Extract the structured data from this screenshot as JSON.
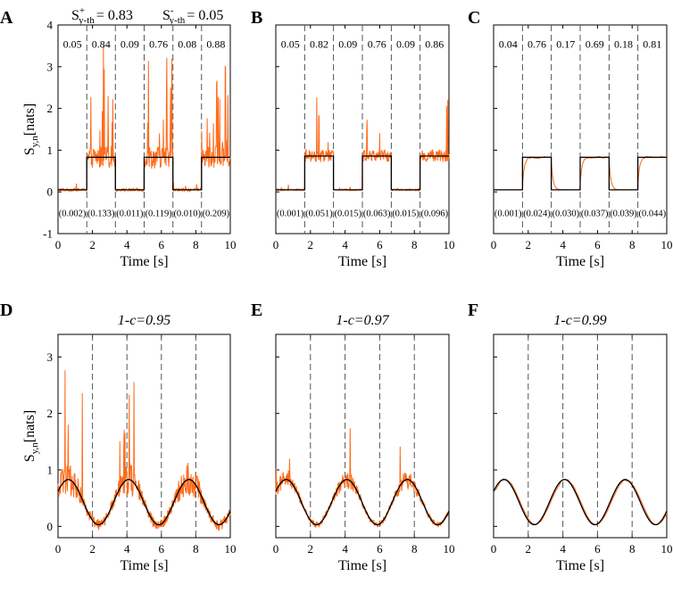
{
  "chart_data": [
    {
      "panel": "A",
      "type": "line",
      "xlabel": "Time [s]",
      "ylabel_main": "S",
      "ylabel_sub": "y,n",
      "ylabel_unit": "[nats]",
      "xlim": [
        0,
        10
      ],
      "ylim": [
        -1,
        4
      ],
      "xticks": [
        "0",
        "2",
        "4",
        "6",
        "8",
        "10"
      ],
      "yticks": [
        "-1",
        "0",
        "1",
        "2",
        "3",
        "4"
      ],
      "dashed_x": [
        1.67,
        3.33,
        5.0,
        6.67,
        8.33
      ],
      "segment_means": [
        "0.05",
        "0.84",
        "0.09",
        "0.76",
        "0.08",
        "0.88"
      ],
      "segment_sd": [
        "(0.002)",
        "(0.133)",
        "(0.011)",
        "(0.119)",
        "(0.010)",
        "(0.209)"
      ],
      "threshold_plus_label": "S",
      "threshold_plus_sup": "+",
      "threshold_plus_sub": "y-th",
      "threshold_plus_value": "= 0.83",
      "threshold_minus_label": "S",
      "threshold_minus_sup": "-",
      "threshold_minus_sub": "y-th",
      "threshold_minus_value": "= 0.05",
      "series": [
        {
          "name": "reference",
          "color": "#000000",
          "step_levels": [
            0.05,
            0.83,
            0.05,
            0.83,
            0.05,
            0.83
          ]
        },
        {
          "name": "estimate",
          "color": "#ff6a1a",
          "mode": "square",
          "noise": 0.55,
          "spikes": 1.0,
          "smooth": 0
        }
      ]
    },
    {
      "panel": "B",
      "type": "line",
      "xlabel": "Time [s]",
      "xlim": [
        0,
        10
      ],
      "ylim": [
        -1,
        4
      ],
      "xticks": [
        "0",
        "2",
        "4",
        "6",
        "8",
        "10"
      ],
      "dashed_x": [
        1.67,
        3.33,
        5.0,
        6.67,
        8.33
      ],
      "segment_means": [
        "0.05",
        "0.82",
        "0.09",
        "0.76",
        "0.09",
        "0.86"
      ],
      "segment_sd": [
        "(0.001)",
        "(0.051)",
        "(0.015)",
        "(0.063)",
        "(0.015)",
        "(0.096)"
      ],
      "series": [
        {
          "name": "reference",
          "color": "#000000",
          "step_levels": [
            0.05,
            0.86,
            0.05,
            0.86,
            0.05,
            0.86
          ]
        },
        {
          "name": "estimate",
          "color": "#ff6a1a",
          "mode": "square",
          "noise": 0.3,
          "spikes": 0.55,
          "smooth": 0
        }
      ]
    },
    {
      "panel": "C",
      "type": "line",
      "xlabel": "Time [s]",
      "xlim": [
        0,
        10
      ],
      "ylim": [
        -1,
        4
      ],
      "xticks": [
        "0",
        "2",
        "4",
        "6",
        "8",
        "10"
      ],
      "dashed_x": [
        1.67,
        3.33,
        5.0,
        6.67,
        8.33
      ],
      "segment_means": [
        "0.04",
        "0.76",
        "0.17",
        "0.69",
        "0.18",
        "0.81"
      ],
      "segment_sd": [
        "(0.001)",
        "(0.024)",
        "(0.030)",
        "(0.037)",
        "(0.039)",
        "(0.044)"
      ],
      "series": [
        {
          "name": "reference",
          "color": "#000000",
          "step_levels": [
            0.05,
            0.83,
            0.05,
            0.83,
            0.05,
            0.83
          ]
        },
        {
          "name": "estimate",
          "color": "#ff6a1a",
          "mode": "square",
          "noise": 0.12,
          "spikes": 0.0,
          "smooth": 0.2
        }
      ]
    },
    {
      "panel": "D",
      "type": "line",
      "title": "1-c=0.95",
      "xlabel": "Time [s]",
      "ylabel_main": "S",
      "ylabel_sub": "y,n",
      "ylabel_unit": "[nats]",
      "xlim": [
        0,
        10
      ],
      "ylim": [
        -0.2,
        3.4
      ],
      "xticks": [
        "0",
        "2",
        "4",
        "6",
        "8",
        "10"
      ],
      "yticks": [
        "0",
        "1",
        "2",
        "3"
      ],
      "dashed_x": [
        2,
        4,
        6,
        8
      ],
      "series": [
        {
          "name": "reference",
          "color": "#000000",
          "sine": {
            "offset": 0.43,
            "amp": 0.4,
            "period": 3.5,
            "peak_t": 0.6
          }
        },
        {
          "name": "estimate",
          "color": "#ff6a1a",
          "mode": "sine",
          "noise": 0.4,
          "spikes": 1.0,
          "smooth": 0
        }
      ]
    },
    {
      "panel": "E",
      "type": "line",
      "title": "1-c=0.97",
      "xlabel": "Time [s]",
      "xlim": [
        0,
        10
      ],
      "ylim": [
        -0.2,
        3.4
      ],
      "xticks": [
        "0",
        "2",
        "4",
        "6",
        "8",
        "10"
      ],
      "dashed_x": [
        2,
        4,
        6,
        8
      ],
      "series": [
        {
          "name": "reference",
          "color": "#000000",
          "sine": {
            "offset": 0.43,
            "amp": 0.4,
            "period": 3.5,
            "peak_t": 0.6
          }
        },
        {
          "name": "estimate",
          "color": "#ff6a1a",
          "mode": "sine",
          "noise": 0.22,
          "spikes": 0.5,
          "smooth": 0
        }
      ]
    },
    {
      "panel": "F",
      "type": "line",
      "title": "1-c=0.99",
      "xlabel": "Time [s]",
      "xlim": [
        0,
        10
      ],
      "ylim": [
        -0.2,
        3.4
      ],
      "xticks": [
        "0",
        "2",
        "4",
        "6",
        "8",
        "10"
      ],
      "dashed_x": [
        2,
        4,
        6,
        8
      ],
      "series": [
        {
          "name": "reference",
          "color": "#000000",
          "sine": {
            "offset": 0.43,
            "amp": 0.4,
            "period": 3.5,
            "peak_t": 0.6
          }
        },
        {
          "name": "estimate",
          "color": "#ff6a1a",
          "mode": "sine",
          "noise": 0.06,
          "spikes": 0.0,
          "smooth": 0.25
        }
      ]
    }
  ]
}
